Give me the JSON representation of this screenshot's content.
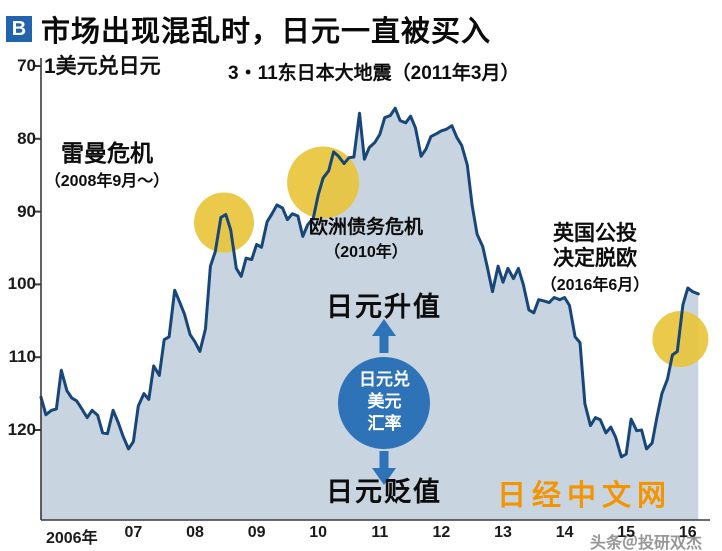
{
  "page": {
    "badge": "B",
    "title": "市场出现混乱时，日元一直被买入"
  },
  "watermarks": {
    "nikkei": "日经中文网",
    "credit": "头条＠投研双杰"
  },
  "colors": {
    "line": "#17477a",
    "fill": "#c9d4e1",
    "gold": "#e8c53d",
    "accent": "#2e72b8",
    "orange": "#f39500",
    "badge": "#2263ae"
  },
  "chart_data": {
    "type": "area",
    "axis_title": "1美元兑日元",
    "y_axis": {
      "ticks": [
        70,
        80,
        90,
        100,
        110,
        120
      ],
      "inverted": true,
      "range": [
        70,
        125
      ]
    },
    "x_axis": {
      "tick_labels": [
        "2006年",
        "07",
        "08",
        "09",
        "10",
        "11",
        "12",
        "13",
        "14",
        "15",
        "16"
      ],
      "range": [
        2006,
        2016.7
      ]
    },
    "series": [
      {
        "name": "美元兑日元汇率",
        "points": [
          [
            2006.0,
            115.5
          ],
          [
            2006.08,
            117.9
          ],
          [
            2006.17,
            117.3
          ],
          [
            2006.25,
            117.1
          ],
          [
            2006.33,
            111.8
          ],
          [
            2006.42,
            114.6
          ],
          [
            2006.5,
            115.6
          ],
          [
            2006.58,
            116.0
          ],
          [
            2006.67,
            117.2
          ],
          [
            2006.75,
            118.3
          ],
          [
            2006.83,
            117.3
          ],
          [
            2006.92,
            118.0
          ],
          [
            2007.0,
            120.4
          ],
          [
            2007.08,
            120.5
          ],
          [
            2007.17,
            117.3
          ],
          [
            2007.25,
            118.9
          ],
          [
            2007.33,
            120.8
          ],
          [
            2007.42,
            122.6
          ],
          [
            2007.5,
            121.6
          ],
          [
            2007.58,
            116.7
          ],
          [
            2007.67,
            115.0
          ],
          [
            2007.75,
            115.8
          ],
          [
            2007.83,
            111.2
          ],
          [
            2007.92,
            112.5
          ],
          [
            2008.0,
            107.6
          ],
          [
            2008.08,
            107.2
          ],
          [
            2008.17,
            100.8
          ],
          [
            2008.25,
            102.4
          ],
          [
            2008.33,
            104.1
          ],
          [
            2008.42,
            106.9
          ],
          [
            2008.5,
            107.9
          ],
          [
            2008.58,
            109.2
          ],
          [
            2008.67,
            106.1
          ],
          [
            2008.75,
            97.5
          ],
          [
            2008.83,
            95.5
          ],
          [
            2008.92,
            90.8
          ],
          [
            2009.0,
            90.4
          ],
          [
            2009.08,
            92.5
          ],
          [
            2009.17,
            97.8
          ],
          [
            2009.25,
            98.9
          ],
          [
            2009.33,
            96.4
          ],
          [
            2009.42,
            96.6
          ],
          [
            2009.5,
            94.5
          ],
          [
            2009.58,
            94.9
          ],
          [
            2009.67,
            91.4
          ],
          [
            2009.75,
            90.3
          ],
          [
            2009.83,
            89.1
          ],
          [
            2009.92,
            89.5
          ],
          [
            2010.0,
            91.1
          ],
          [
            2010.08,
            90.3
          ],
          [
            2010.17,
            90.6
          ],
          [
            2010.25,
            93.4
          ],
          [
            2010.33,
            91.8
          ],
          [
            2010.42,
            90.9
          ],
          [
            2010.5,
            87.7
          ],
          [
            2010.58,
            85.4
          ],
          [
            2010.67,
            84.4
          ],
          [
            2010.75,
            81.8
          ],
          [
            2010.83,
            82.4
          ],
          [
            2010.92,
            83.4
          ],
          [
            2011.0,
            82.6
          ],
          [
            2011.08,
            82.5
          ],
          [
            2011.17,
            76.5
          ],
          [
            2011.25,
            82.8
          ],
          [
            2011.33,
            81.2
          ],
          [
            2011.42,
            80.5
          ],
          [
            2011.5,
            79.4
          ],
          [
            2011.58,
            77.1
          ],
          [
            2011.67,
            76.8
          ],
          [
            2011.75,
            75.8
          ],
          [
            2011.83,
            77.5
          ],
          [
            2011.92,
            77.8
          ],
          [
            2012.0,
            76.9
          ],
          [
            2012.08,
            78.5
          ],
          [
            2012.17,
            82.4
          ],
          [
            2012.25,
            81.4
          ],
          [
            2012.33,
            79.7
          ],
          [
            2012.42,
            79.3
          ],
          [
            2012.5,
            78.9
          ],
          [
            2012.58,
            78.7
          ],
          [
            2012.67,
            78.2
          ],
          [
            2012.75,
            79.8
          ],
          [
            2012.83,
            80.9
          ],
          [
            2012.92,
            83.6
          ],
          [
            2013.0,
            89.2
          ],
          [
            2013.08,
            93.1
          ],
          [
            2013.17,
            94.8
          ],
          [
            2013.25,
            97.8
          ],
          [
            2013.33,
            101.0
          ],
          [
            2013.42,
            97.5
          ],
          [
            2013.5,
            99.7
          ],
          [
            2013.58,
            97.8
          ],
          [
            2013.67,
            99.2
          ],
          [
            2013.75,
            97.8
          ],
          [
            2013.83,
            100.0
          ],
          [
            2013.92,
            103.5
          ],
          [
            2014.0,
            103.9
          ],
          [
            2014.08,
            102.1
          ],
          [
            2014.17,
            102.3
          ],
          [
            2014.25,
            102.5
          ],
          [
            2014.33,
            101.8
          ],
          [
            2014.42,
            102.1
          ],
          [
            2014.5,
            101.8
          ],
          [
            2014.58,
            102.9
          ],
          [
            2014.67,
            107.2
          ],
          [
            2014.75,
            108.0
          ],
          [
            2014.83,
            116.4
          ],
          [
            2014.92,
            119.4
          ],
          [
            2015.0,
            118.3
          ],
          [
            2015.08,
            118.6
          ],
          [
            2015.17,
            120.4
          ],
          [
            2015.25,
            119.6
          ],
          [
            2015.33,
            121.0
          ],
          [
            2015.42,
            123.7
          ],
          [
            2015.5,
            123.3
          ],
          [
            2015.58,
            118.5
          ],
          [
            2015.67,
            120.1
          ],
          [
            2015.75,
            120.0
          ],
          [
            2015.83,
            122.6
          ],
          [
            2015.92,
            121.8
          ],
          [
            2016.0,
            118.2
          ],
          [
            2016.08,
            115.0
          ],
          [
            2016.17,
            113.0
          ],
          [
            2016.25,
            109.7
          ],
          [
            2016.33,
            109.2
          ],
          [
            2016.42,
            102.8
          ],
          [
            2016.5,
            100.5
          ],
          [
            2016.58,
            101.0
          ],
          [
            2016.67,
            101.3
          ]
        ]
      }
    ],
    "highlights": [
      {
        "label": "雷曼危机",
        "x": 2008.97,
        "value": 91.5,
        "r": 30
      },
      {
        "label": "欧洲债务危机",
        "x": 2010.58,
        "value": 86.0,
        "r": 36
      },
      {
        "label": "英国公投决定脱欧",
        "x": 2016.38,
        "value": 107.5,
        "r": 28
      }
    ],
    "annotations": {
      "lehman": {
        "title": "雷曼危机",
        "sub": "（2008年9月～）"
      },
      "earthquake": {
        "label": "3・11东日本大地震（2011年3月）"
      },
      "europe": {
        "title": "欧洲债务危机",
        "sub": "（2010年）"
      },
      "brexit": {
        "line1": "英国公投",
        "line2": "决定脱欧",
        "sub": "（2016年6月）"
      },
      "appreciate": "日元升值",
      "depreciate": "日元贬值",
      "center_badge": {
        "line1": "日元兑",
        "line2": "美元",
        "line3": "汇率"
      }
    }
  }
}
